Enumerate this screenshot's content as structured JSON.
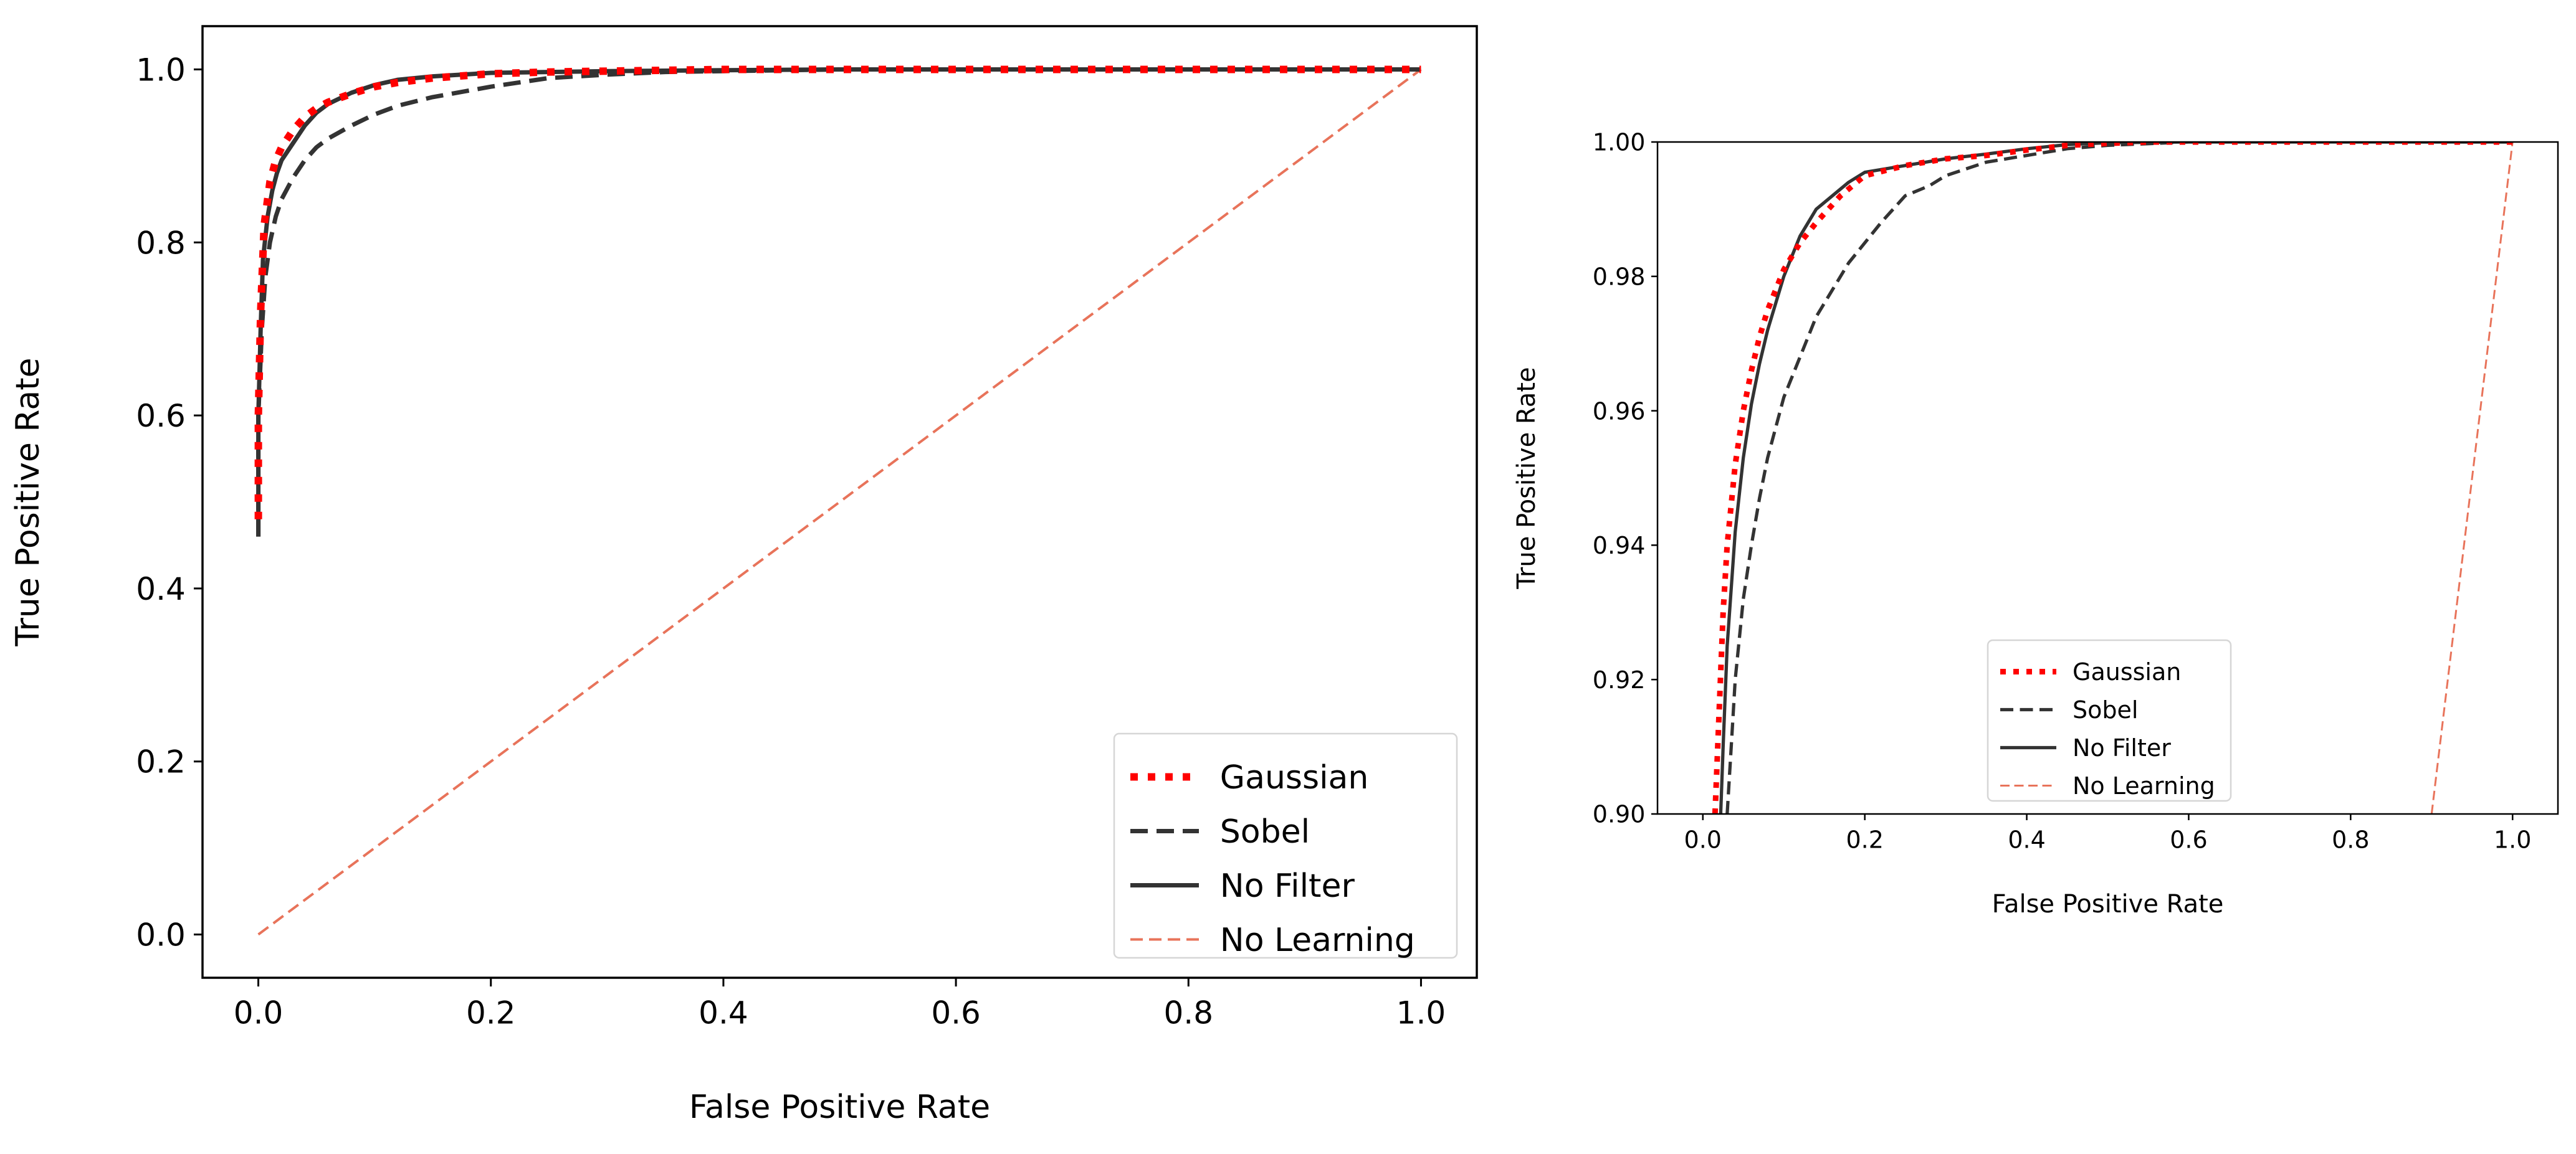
{
  "chart_data": [
    {
      "type": "line",
      "xlabel": "False Positive Rate",
      "ylabel": "True Positive Rate",
      "xlim": [
        -0.048,
        1.048
      ],
      "ylim": [
        -0.05,
        1.05
      ],
      "xticks": [
        0.0,
        0.2,
        0.4,
        0.6,
        0.8,
        1.0
      ],
      "yticks": [
        0.0,
        0.2,
        0.4,
        0.6,
        0.8,
        1.0
      ],
      "xtick_labels": [
        "0.0",
        "0.2",
        "0.4",
        "0.6",
        "0.8",
        "1.0"
      ],
      "ytick_labels": [
        "0.0",
        "0.2",
        "0.4",
        "0.6",
        "0.8",
        "1.0"
      ],
      "grid": false,
      "legend": "lower-right",
      "series": [
        {
          "name": "Gaussian",
          "color": "#ff0000",
          "style": "dotted",
          "x": [
            0.0,
            0.0,
            0.002,
            0.005,
            0.01,
            0.015,
            0.02,
            0.03,
            0.04,
            0.05,
            0.06,
            0.08,
            0.1,
            0.12,
            0.15,
            0.2,
            0.25,
            0.3,
            0.4,
            0.5,
            0.6,
            0.7,
            0.8,
            0.9,
            1.0
          ],
          "y": [
            0.48,
            0.6,
            0.72,
            0.82,
            0.87,
            0.895,
            0.91,
            0.93,
            0.945,
            0.955,
            0.962,
            0.972,
            0.98,
            0.985,
            0.99,
            0.995,
            0.997,
            0.998,
            1.0,
            1.0,
            1.0,
            1.0,
            1.0,
            1.0,
            1.0
          ]
        },
        {
          "name": "Sobel",
          "color": "#333333",
          "style": "dashed",
          "x": [
            0.0,
            0.0,
            0.003,
            0.006,
            0.01,
            0.015,
            0.02,
            0.03,
            0.04,
            0.05,
            0.06,
            0.08,
            0.1,
            0.12,
            0.15,
            0.2,
            0.25,
            0.3,
            0.35,
            0.4,
            0.5,
            0.6,
            0.7,
            0.8,
            0.9,
            1.0
          ],
          "y": [
            0.46,
            0.6,
            0.7,
            0.76,
            0.8,
            0.83,
            0.85,
            0.875,
            0.895,
            0.91,
            0.92,
            0.935,
            0.948,
            0.958,
            0.968,
            0.98,
            0.99,
            0.994,
            0.997,
            0.998,
            1.0,
            1.0,
            1.0,
            1.0,
            1.0,
            1.0
          ]
        },
        {
          "name": "No Filter",
          "color": "#333333",
          "style": "solid",
          "x": [
            0.0,
            0.0,
            0.002,
            0.004,
            0.008,
            0.012,
            0.016,
            0.02,
            0.03,
            0.04,
            0.05,
            0.06,
            0.08,
            0.1,
            0.12,
            0.15,
            0.2,
            0.25,
            0.3,
            0.4,
            0.5,
            0.6,
            0.7,
            0.8,
            0.9,
            1.0
          ],
          "y": [
            0.46,
            0.6,
            0.7,
            0.78,
            0.83,
            0.86,
            0.88,
            0.895,
            0.915,
            0.935,
            0.95,
            0.96,
            0.973,
            0.982,
            0.988,
            0.992,
            0.996,
            0.997,
            0.998,
            0.999,
            1.0,
            1.0,
            1.0,
            1.0,
            1.0,
            1.0
          ]
        },
        {
          "name": "No Learning",
          "color": "#e8735a",
          "style": "dashed-thin",
          "x": [
            0.0,
            1.0
          ],
          "y": [
            0.0,
            1.0
          ]
        }
      ]
    },
    {
      "type": "line",
      "xlabel": "False Positive Rate",
      "ylabel": "True Positive Rate",
      "xlim": [
        -0.056,
        1.056
      ],
      "ylim": [
        0.9,
        1.0
      ],
      "xticks": [
        0.0,
        0.2,
        0.4,
        0.6,
        0.8,
        1.0
      ],
      "yticks": [
        0.9,
        0.92,
        0.94,
        0.96,
        0.98,
        1.0
      ],
      "xtick_labels": [
        "0.0",
        "0.2",
        "0.4",
        "0.6",
        "0.8",
        "1.0"
      ],
      "ytick_labels": [
        "0.90",
        "0.92",
        "0.94",
        "0.96",
        "0.98",
        "1.00"
      ],
      "grid": false,
      "legend": "lower-center",
      "series": [
        {
          "name": "Gaussian",
          "color": "#ff0000",
          "style": "dotted",
          "x": [
            0.015,
            0.02,
            0.025,
            0.03,
            0.04,
            0.05,
            0.06,
            0.07,
            0.08,
            0.1,
            0.12,
            0.14,
            0.17,
            0.2,
            0.25,
            0.3,
            0.35,
            0.4,
            0.45,
            0.5,
            0.55,
            0.6,
            0.8,
            1.0
          ],
          "y": [
            0.9,
            0.915,
            0.93,
            0.94,
            0.952,
            0.96,
            0.966,
            0.971,
            0.975,
            0.981,
            0.985,
            0.988,
            0.992,
            0.995,
            0.9965,
            0.9975,
            0.998,
            0.9988,
            0.9995,
            0.9998,
            1.0,
            1.0,
            1.0,
            1.0
          ]
        },
        {
          "name": "Sobel",
          "color": "#333333",
          "style": "dashed",
          "x": [
            0.03,
            0.035,
            0.04,
            0.05,
            0.06,
            0.07,
            0.08,
            0.1,
            0.12,
            0.14,
            0.16,
            0.18,
            0.2,
            0.22,
            0.25,
            0.28,
            0.3,
            0.35,
            0.4,
            0.45,
            0.5,
            0.6,
            0.8,
            1.0
          ],
          "y": [
            0.9,
            0.91,
            0.92,
            0.932,
            0.94,
            0.947,
            0.953,
            0.962,
            0.968,
            0.974,
            0.978,
            0.982,
            0.985,
            0.988,
            0.992,
            0.9935,
            0.995,
            0.997,
            0.998,
            0.999,
            0.9995,
            1.0,
            1.0,
            1.0
          ]
        },
        {
          "name": "No Filter",
          "color": "#333333",
          "style": "solid",
          "x": [
            0.022,
            0.025,
            0.03,
            0.04,
            0.05,
            0.06,
            0.07,
            0.08,
            0.09,
            0.1,
            0.11,
            0.12,
            0.14,
            0.16,
            0.18,
            0.2,
            0.25,
            0.3,
            0.35,
            0.4,
            0.45,
            0.5,
            0.6,
            0.8,
            1.0
          ],
          "y": [
            0.9,
            0.91,
            0.925,
            0.942,
            0.953,
            0.961,
            0.967,
            0.972,
            0.976,
            0.98,
            0.983,
            0.986,
            0.99,
            0.992,
            0.994,
            0.9955,
            0.9965,
            0.9975,
            0.9982,
            0.999,
            0.9996,
            0.9999,
            1.0,
            1.0,
            1.0
          ]
        },
        {
          "name": "No Learning",
          "color": "#e8735a",
          "style": "dashed-thin",
          "x": [
            0.9,
            1.0
          ],
          "y": [
            0.9,
            1.0
          ]
        }
      ]
    }
  ]
}
